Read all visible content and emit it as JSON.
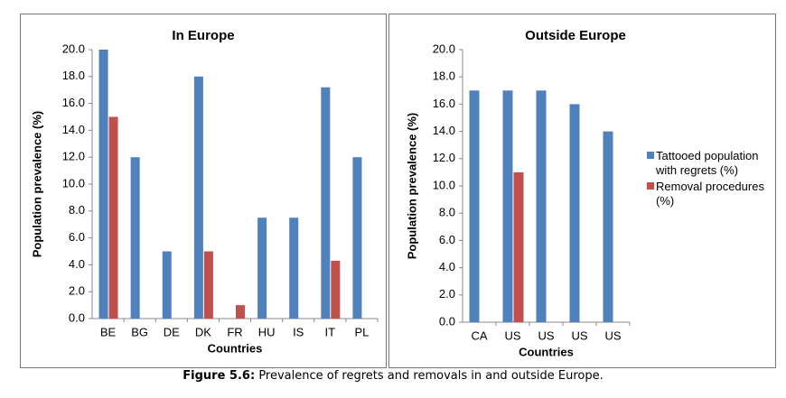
{
  "chart_data": [
    {
      "type": "bar",
      "title": "In Europe",
      "xlabel": "Countries",
      "ylabel": "Population prevalence (%)",
      "categories": [
        "BE",
        "BG",
        "DE",
        "DK",
        "FR",
        "HU",
        "IS",
        "IT",
        "PL"
      ],
      "series": [
        {
          "color": "#4f81bd",
          "values": [
            20,
            12,
            5,
            18,
            null,
            7.5,
            7.5,
            17.2,
            12
          ]
        },
        {
          "color": "#c0504d",
          "values": [
            15,
            null,
            null,
            5,
            1,
            null,
            null,
            4.3,
            null
          ]
        }
      ],
      "ylim": [
        0,
        20
      ],
      "yticks": [
        {
          "value": 0,
          "label": "0.0"
        },
        {
          "value": 2,
          "label": "2.0"
        },
        {
          "value": 4,
          "label": "4.0"
        },
        {
          "value": 6,
          "label": "6.0"
        },
        {
          "value": 8,
          "label": "8.0"
        },
        {
          "value": 10,
          "label": "10.0"
        },
        {
          "value": 12,
          "label": "12.0"
        },
        {
          "value": 14,
          "label": "14.0"
        },
        {
          "value": 16,
          "label": "16.0"
        },
        {
          "value": 18,
          "label": "18.0"
        },
        {
          "value": 20,
          "label": "20.0"
        }
      ]
    },
    {
      "type": "bar",
      "title": "Outside Europe",
      "xlabel": "Countries",
      "ylabel": "Population prevalence (%)",
      "categories": [
        "CA",
        "US",
        "US",
        "US",
        "US"
      ],
      "series": [
        {
          "name": "Tattooed population with regrets (%)",
          "color": "#4f81bd",
          "values": [
            17,
            17,
            17,
            16,
            14
          ]
        },
        {
          "name": "Removal procedures (%)",
          "color": "#c0504d",
          "values": [
            null,
            11,
            null,
            null,
            null
          ]
        }
      ],
      "ylim": [
        0,
        20
      ],
      "yticks": [
        {
          "value": 0,
          "label": "0.0"
        },
        {
          "value": 2,
          "label": "2.0"
        },
        {
          "value": 4,
          "label": "4.0"
        },
        {
          "value": 6,
          "label": "6.0"
        },
        {
          "value": 8,
          "label": "8.0"
        },
        {
          "value": 10,
          "label": "10.0"
        },
        {
          "value": 12,
          "label": "12.0"
        },
        {
          "value": 14,
          "label": "14.0"
        },
        {
          "value": 16,
          "label": "16.0"
        },
        {
          "value": 18,
          "label": "18.0"
        },
        {
          "value": 20,
          "label": "20.0"
        }
      ],
      "legend": "right"
    }
  ],
  "caption": {
    "label": "Figure 5.6:",
    "text": "Prevalence of regrets and removals in and outside Europe."
  }
}
